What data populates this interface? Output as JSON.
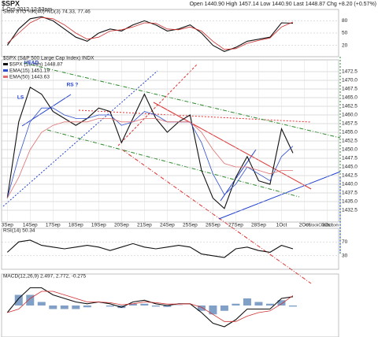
{
  "header": {
    "symbol": "$SPX",
    "date": "1-Oct-2012 12:53pm",
    "quote": "Open 1440.90 High 1457.14 Low 1440.90 Last 1448.87 Chg +8.20 (+0.57%)",
    "credit": "©StockCharts.com"
  },
  "chart_data": [
    {
      "type": "line",
      "title": "Slow STO %K(40) %D(3) 74.33, 77.46",
      "ylim": [
        0,
        100
      ],
      "yticks": [
        20,
        50,
        80
      ],
      "grid": true,
      "series": [
        {
          "color": "#111111",
          "values": [
            20,
            60,
            85,
            90,
            80,
            60,
            40,
            30,
            50,
            60,
            55,
            70,
            80,
            70,
            55,
            60,
            70,
            50,
            20,
            5,
            15,
            30,
            35,
            40,
            75,
            74
          ]
        },
        {
          "color": "#d03030",
          "values": [
            25,
            50,
            75,
            88,
            85,
            70,
            50,
            35,
            40,
            55,
            58,
            65,
            75,
            74,
            60,
            58,
            65,
            55,
            30,
            10,
            12,
            25,
            32,
            38,
            65,
            77
          ]
        }
      ]
    },
    {
      "type": "line",
      "title": "$SPX (S&P 500 Large Cap Index) INDX",
      "ylim": [
        1430,
        1475
      ],
      "grid": true,
      "xlim": [
        -0.5,
        29
      ],
      "xticks": [
        {
          "value": 0,
          "label": "3Sep"
        },
        {
          "value": 2,
          "label": "14Sep"
        },
        {
          "value": 4,
          "label": "17Sep"
        },
        {
          "value": 6,
          "label": "18Sep"
        },
        {
          "value": 8,
          "label": "19Sep"
        },
        {
          "value": 10,
          "label": "20Sep"
        },
        {
          "value": 12,
          "label": "21Sep"
        },
        {
          "value": 14,
          "label": "24Sep"
        },
        {
          "value": 16,
          "label": "25Sep"
        },
        {
          "value": 18,
          "label": "26Sep"
        },
        {
          "value": 20,
          "label": "27Sep"
        },
        {
          "value": 22,
          "label": "28Sep"
        },
        {
          "value": 24,
          "label": "1Oct"
        },
        {
          "value": 26,
          "label": "2Oct"
        },
        {
          "value": 28,
          "label": "3Oct"
        }
      ],
      "yticks": [
        {
          "value": 1432.5,
          "label": "1432.5"
        },
        {
          "value": 1435,
          "label": "1435.0"
        },
        {
          "value": 1437.5,
          "label": "1437.5"
        },
        {
          "value": 1440,
          "label": "1440.0"
        },
        {
          "value": 1442.5,
          "label": "1442.5"
        },
        {
          "value": 1445,
          "label": "1445.0"
        },
        {
          "value": 1447.5,
          "label": "1447.5"
        },
        {
          "value": 1450,
          "label": "1450.0"
        },
        {
          "value": 1452.5,
          "label": "1452.5"
        },
        {
          "value": 1455,
          "label": "1455.0"
        },
        {
          "value": 1457.5,
          "label": "1457.5"
        },
        {
          "value": 1460,
          "label": "1460.0"
        },
        {
          "value": 1462.5,
          "label": "1462.5"
        },
        {
          "value": 1465,
          "label": "1465.0"
        },
        {
          "value": 1467.5,
          "label": "1467.5"
        },
        {
          "value": 1470,
          "label": "1470.0"
        },
        {
          "value": 1472.5,
          "label": "1472.5"
        }
      ],
      "annotations": [
        "HEAD",
        "LS",
        "RS ?"
      ],
      "series": [
        {
          "name": "$SPX (15 min) 1448.87",
          "color": "#111111",
          "values": [
            1436,
            1458,
            1468,
            1466,
            1461,
            1459,
            1457,
            1459,
            1462,
            1461,
            1452,
            1459,
            1466,
            1459,
            1455,
            1458,
            1460,
            1444,
            1436,
            1433,
            1442,
            1448,
            1441,
            1440,
            1456,
            1449
          ]
        },
        {
          "name": "EMA(15) 1451.19",
          "color": "#3050d0",
          "values": [
            1436,
            1448,
            1458,
            1462,
            1462,
            1460,
            1459,
            1459,
            1460,
            1460,
            1457,
            1458,
            1461,
            1460,
            1458,
            1458,
            1458,
            1452,
            1443,
            1437,
            1440,
            1445,
            1443,
            1441,
            1448,
            1451
          ]
        },
        {
          "name": "EMA(50) 1443.63",
          "color": "#e07070",
          "values": [
            1436,
            1442,
            1450,
            1455,
            1457,
            1458,
            1458,
            1458,
            1459,
            1459,
            1458,
            1458,
            1459,
            1459,
            1458,
            1458,
            1458,
            1455,
            1450,
            1446,
            1445,
            1445,
            1444,
            1443,
            1444,
            1444
          ]
        }
      ]
    },
    {
      "type": "line",
      "title": "RSI(14) 50.34",
      "ylim": [
        0,
        100
      ],
      "yticks": [
        30,
        70
      ],
      "grid": true,
      "series": [
        {
          "color": "#111111",
          "values": [
            40,
            70,
            75,
            60,
            55,
            50,
            55,
            60,
            55,
            45,
            55,
            65,
            55,
            50,
            55,
            60,
            55,
            35,
            30,
            25,
            50,
            55,
            45,
            40,
            60,
            50
          ]
        }
      ]
    },
    {
      "type": "line",
      "title": "MACD(12,26,9) 2.497, 2.772, -0.275",
      "ylim": [
        -8,
        8
      ],
      "series": [
        {
          "color": "#111111",
          "values": [
            -2,
            2,
            5,
            5,
            3,
            2,
            1,
            0.5,
            1,
            0.5,
            -0.5,
            1,
            1.5,
            0.5,
            0,
            0.5,
            0.5,
            -2,
            -5,
            -6,
            -4,
            -1,
            -1,
            -1,
            2,
            2.5
          ]
        },
        {
          "color": "#d03030",
          "values": [
            -2,
            -1,
            2,
            4,
            4,
            3,
            2,
            1,
            1,
            0.8,
            0.2,
            0.5,
            1,
            0.8,
            0.4,
            0.4,
            0.5,
            -0.5,
            -2.5,
            -4.5,
            -4.5,
            -3,
            -2,
            -1.5,
            0.5,
            2.8
          ]
        }
      ],
      "histogram": {
        "color": "#4a78b0",
        "values": [
          0,
          3,
          3,
          1,
          -1,
          -1,
          -1,
          -0.5,
          0,
          -0.3,
          -0.7,
          0.5,
          0.5,
          -0.3,
          -0.4,
          0.1,
          0,
          -1.5,
          -2.5,
          -1.5,
          0.5,
          2,
          1,
          0.5,
          1.5,
          -0.3
        ]
      }
    }
  ]
}
